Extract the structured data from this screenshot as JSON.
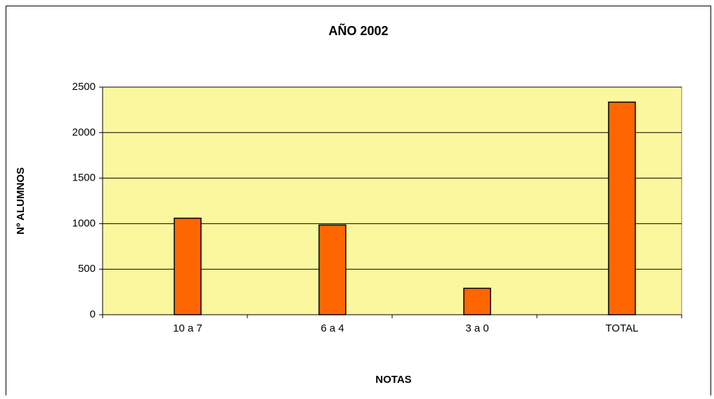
{
  "chart_data": {
    "type": "bar",
    "title": "AÑO 2002",
    "xlabel": "NOTAS",
    "ylabel": "Nº ALUMNOS",
    "categories": [
      "10 a 7",
      "6 a 4",
      "3 a 0",
      "TOTAL"
    ],
    "values": [
      1060,
      985,
      290,
      2335
    ],
    "color": "#ff6600",
    "ylim": [
      0,
      2500
    ],
    "yticks": [
      0,
      500,
      1000,
      1500,
      2000,
      2500
    ],
    "grid": true
  }
}
